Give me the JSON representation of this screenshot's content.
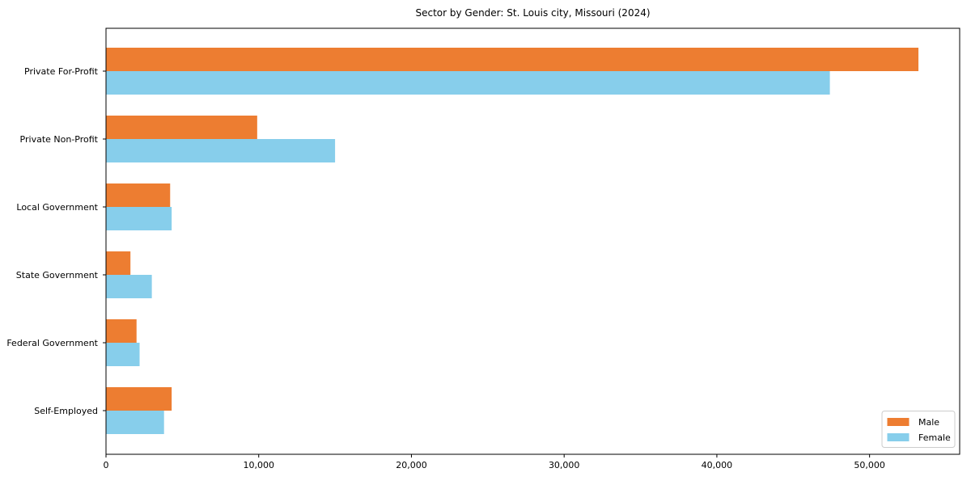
{
  "chart_data": {
    "type": "bar",
    "orientation": "horizontal",
    "title": "Sector by Gender: St. Louis city, Missouri (2024)",
    "categories": [
      "Private For-Profit",
      "Private Non-Profit",
      "Local Government",
      "State Government",
      "Federal Government",
      "Self-Employed"
    ],
    "series": [
      {
        "name": "Male",
        "color": "#ed7d31",
        "values": [
          53200,
          9900,
          4200,
          1600,
          2000,
          4300
        ]
      },
      {
        "name": "Female",
        "color": "#87ceeb",
        "values": [
          47400,
          15000,
          4300,
          3000,
          2200,
          3800
        ]
      }
    ],
    "xlabel": "",
    "ylabel": "",
    "xlim": [
      0,
      55900
    ],
    "xticks": [
      0,
      10000,
      20000,
      30000,
      40000,
      50000
    ],
    "xtick_labels": [
      "0",
      "10,000",
      "20,000",
      "30,000",
      "40,000",
      "50,000"
    ],
    "grid": false,
    "legend": {
      "position": "lower right",
      "entries": [
        "Male",
        "Female"
      ]
    },
    "axis_color": "#000000",
    "legend_border_color": "#cccccc",
    "background_color": "#ffffff"
  }
}
